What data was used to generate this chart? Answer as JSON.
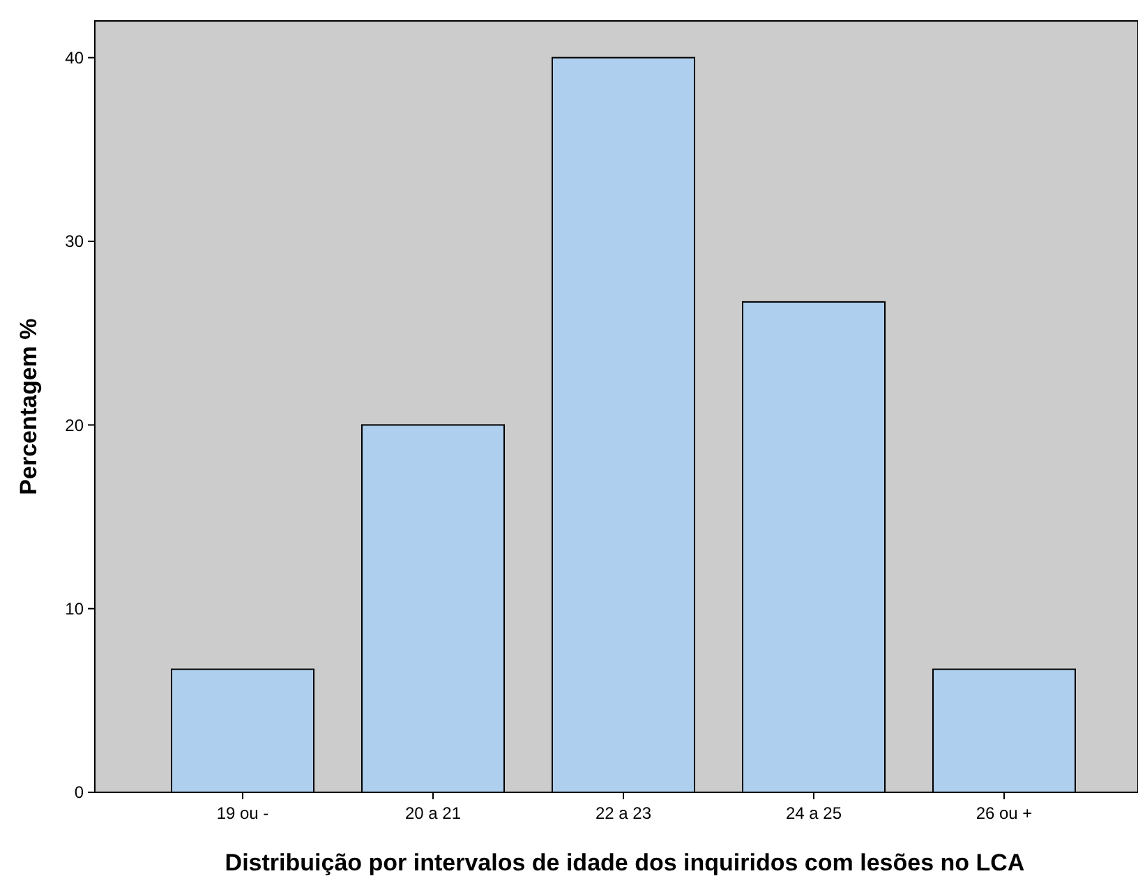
{
  "chart_data": {
    "type": "bar",
    "xlabel": "Distribuição por intervalos de idade dos inquiridos com lesões no LCA",
    "ylabel": "Percentagem %",
    "categories": [
      "19 ou -",
      "20 a 21",
      "22 a 23",
      "24 a 25",
      "26 ou +"
    ],
    "values": [
      6.7,
      20,
      40,
      26.7,
      6.7
    ],
    "color": "#aecfed",
    "ylim": [
      0,
      42
    ],
    "yticks": [
      0,
      10,
      20,
      30,
      40
    ],
    "grid": false
  }
}
